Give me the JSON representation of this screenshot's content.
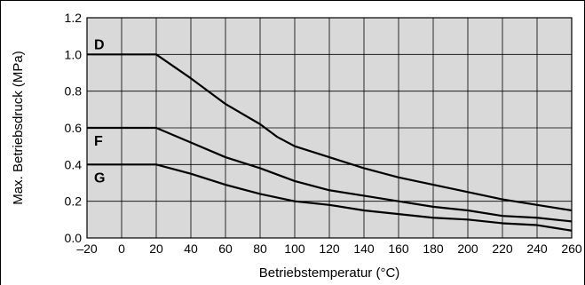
{
  "chart_data": {
    "type": "line",
    "title": "",
    "xlabel": "Betriebstemperatur (°C)",
    "ylabel": "Max. Betriebsdruck (MPa)",
    "xlim": [
      -20,
      260
    ],
    "ylim": [
      0.0,
      1.2
    ],
    "xticks": [
      "–20",
      "0",
      "20",
      "40",
      "60",
      "80",
      "100",
      "120",
      "140",
      "160",
      "180",
      "200",
      "220",
      "240",
      "260"
    ],
    "yticks": [
      "0.0",
      "0.2",
      "0.4",
      "0.6",
      "0.8",
      "1.0",
      "1.2"
    ],
    "xtick_values": [
      -20,
      0,
      20,
      40,
      60,
      80,
      100,
      120,
      140,
      160,
      180,
      200,
      220,
      240,
      260
    ],
    "ytick_values": [
      0.0,
      0.2,
      0.4,
      0.6,
      0.8,
      1.0,
      1.2
    ],
    "grid": true,
    "plot_background": "#d9d9d9",
    "line_color": "#000000",
    "series": [
      {
        "name": "D",
        "x": [
          -20,
          20,
          40,
          60,
          80,
          90,
          100,
          120,
          140,
          160,
          180,
          200,
          220,
          240,
          260
        ],
        "y": [
          1.0,
          1.0,
          0.87,
          0.73,
          0.62,
          0.55,
          0.5,
          0.44,
          0.38,
          0.33,
          0.29,
          0.25,
          0.21,
          0.18,
          0.15
        ]
      },
      {
        "name": "F",
        "x": [
          -20,
          20,
          40,
          60,
          80,
          100,
          120,
          140,
          160,
          180,
          200,
          220,
          240,
          260
        ],
        "y": [
          0.6,
          0.6,
          0.52,
          0.44,
          0.38,
          0.31,
          0.26,
          0.23,
          0.2,
          0.17,
          0.15,
          0.12,
          0.11,
          0.09
        ]
      },
      {
        "name": "G",
        "x": [
          -20,
          20,
          40,
          60,
          80,
          100,
          120,
          140,
          160,
          180,
          200,
          220,
          240,
          260
        ],
        "y": [
          0.4,
          0.4,
          0.35,
          0.29,
          0.24,
          0.2,
          0.18,
          0.15,
          0.13,
          0.11,
          0.1,
          0.08,
          0.07,
          0.04
        ]
      }
    ]
  }
}
